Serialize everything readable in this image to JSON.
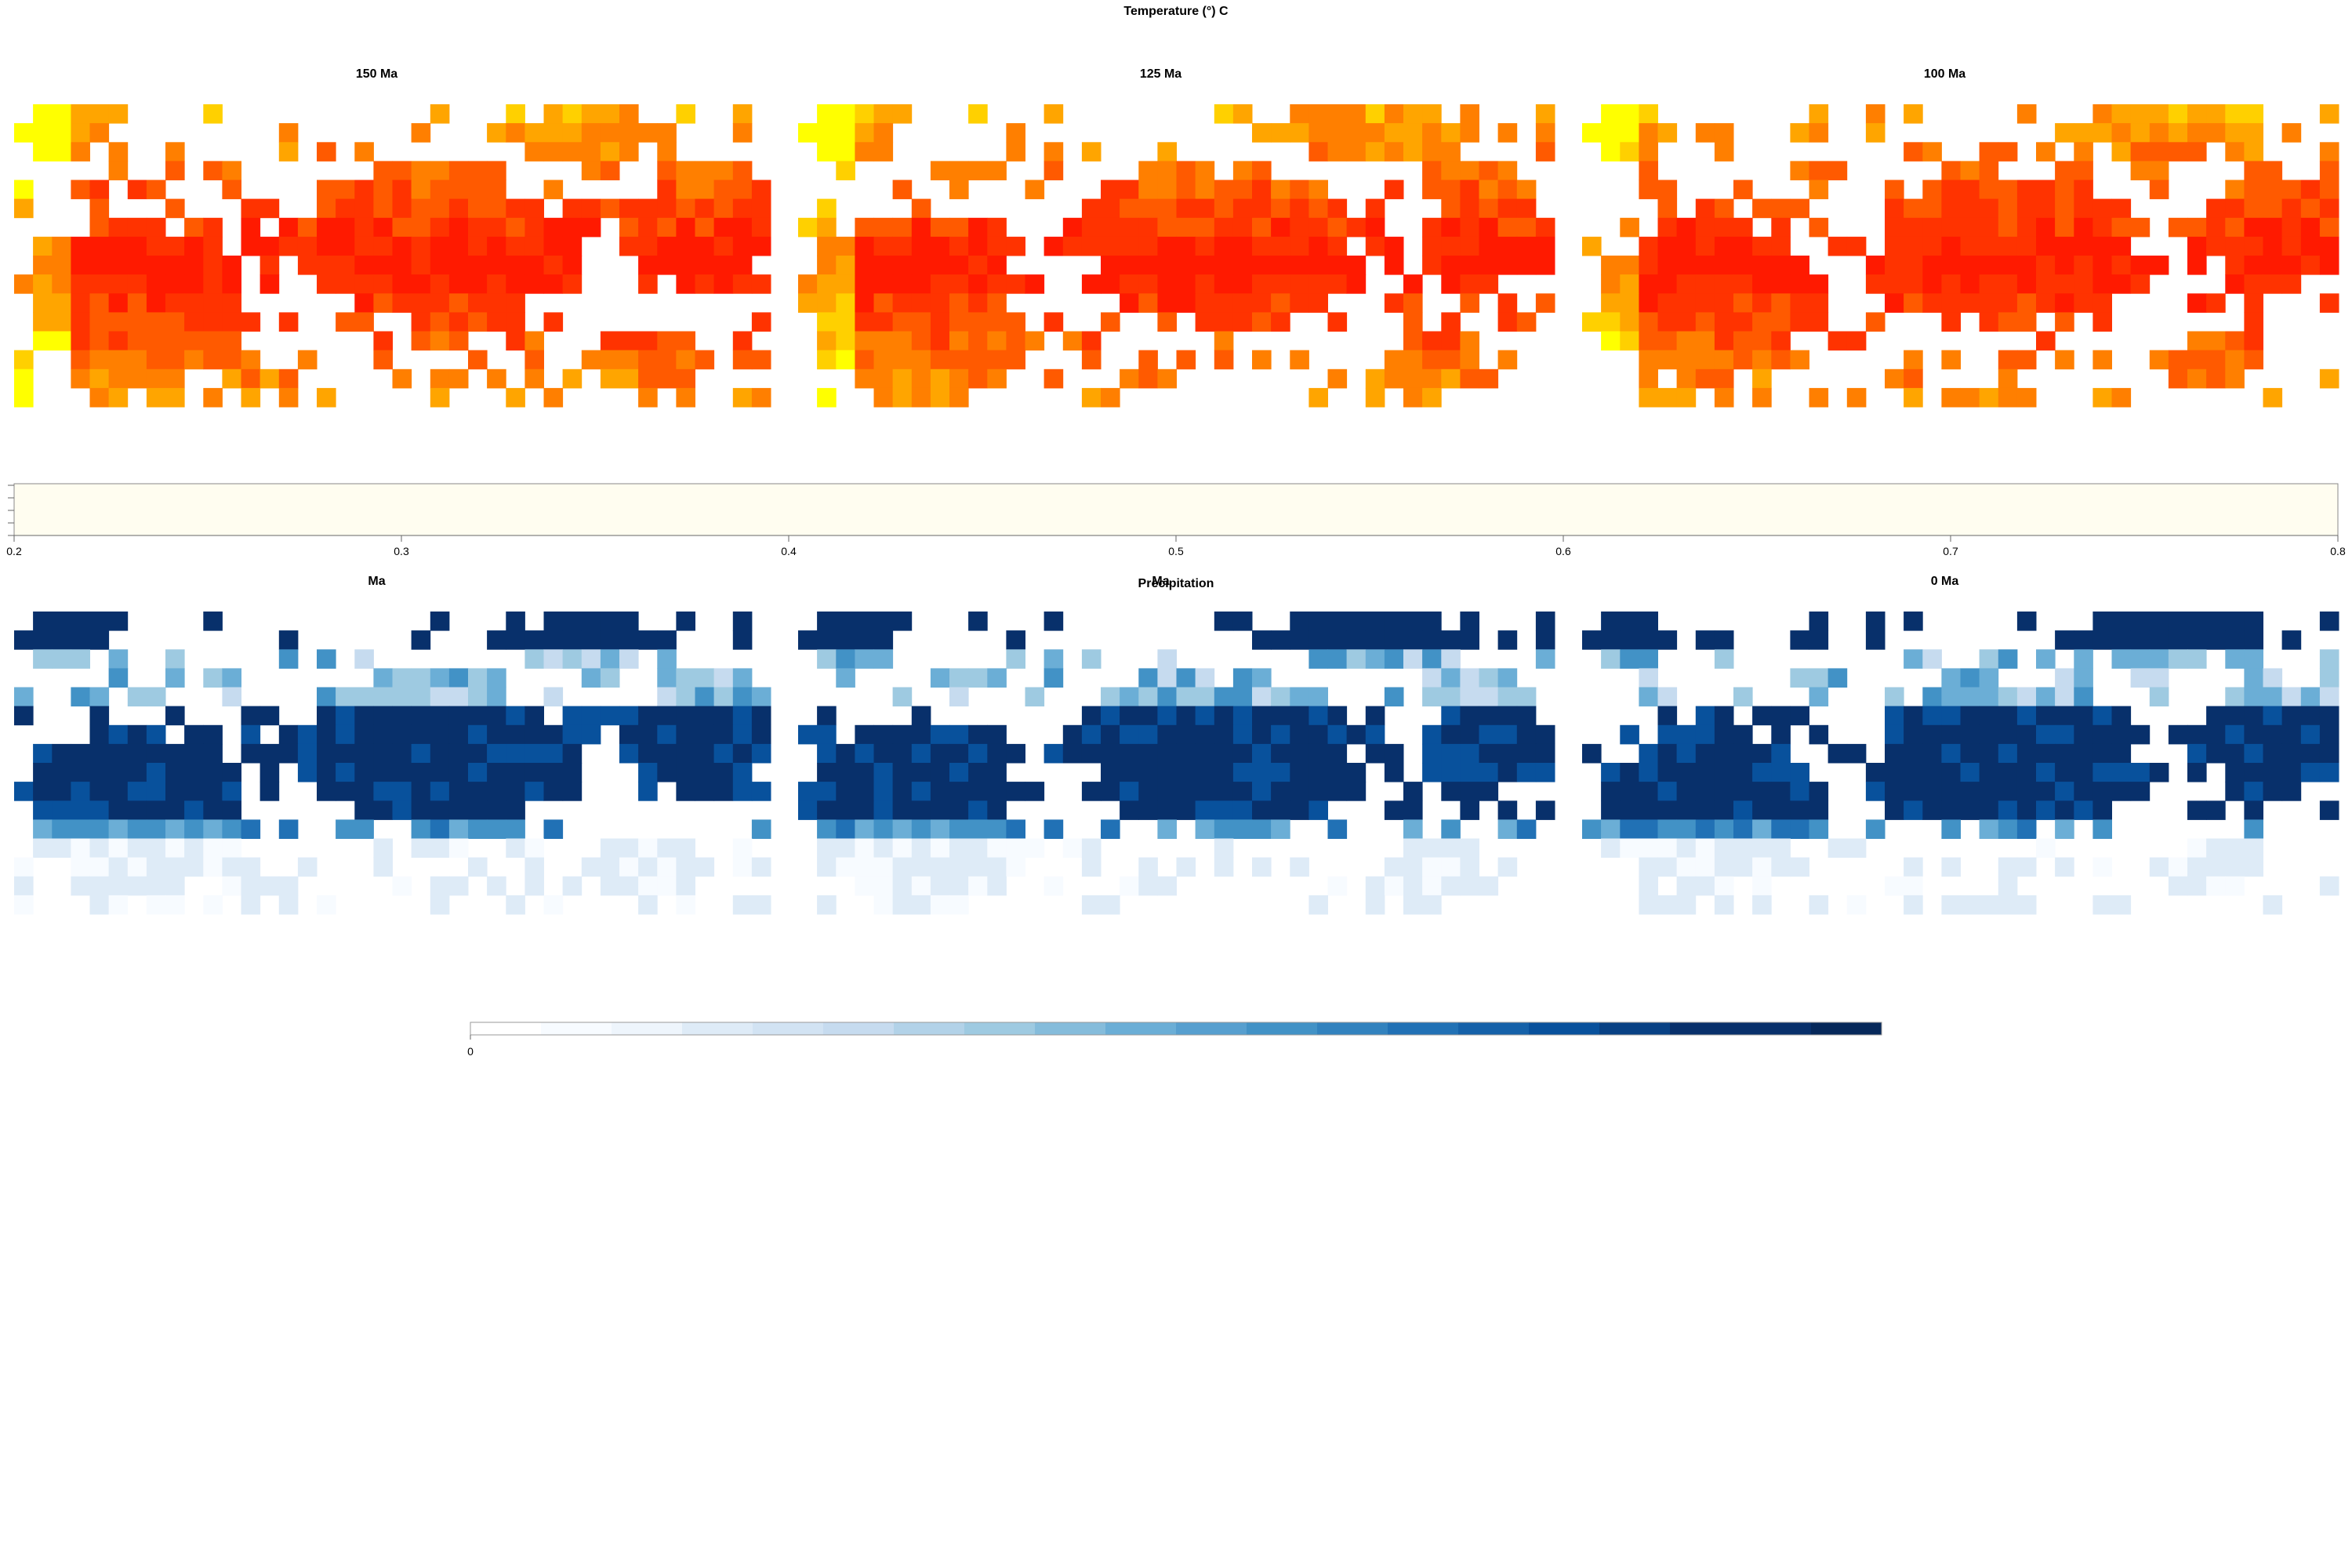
{
  "chart_data": [
    {
      "type": "heatmap",
      "title": "Temperature (°) C",
      "panels": [
        {
          "label": "150 Ma",
          "region_seed": 11
        },
        {
          "label": "125 Ma",
          "region_seed": 23
        },
        {
          "label": "100 Ma",
          "region_seed": 37
        }
      ],
      "colors": [
        "#ffff00",
        "#ffd000",
        "#ffa500",
        "#ff7f00",
        "#ff5a00",
        "#ff3300",
        "#ff1a00"
      ],
      "colorbar": {
        "ticks": [
          "0.2",
          "0.3",
          "0.4",
          "0.5",
          "0.6",
          "0.7",
          "0.8"
        ],
        "fill": "#fffdf0"
      }
    },
    {
      "type": "heatmap",
      "title": "Precipitation",
      "panels": [
        {
          "label": "Ma",
          "region_seed": 11
        },
        {
          "label": "Ma",
          "region_seed": 23
        },
        {
          "label": "0 Ma",
          "region_seed": 37
        }
      ],
      "colors": [
        "#f7fbff",
        "#deebf7",
        "#c6dbef",
        "#9ecae1",
        "#6baed6",
        "#4292c6",
        "#2171b5",
        "#08519c",
        "#08306b"
      ],
      "colorbar": {
        "ticks": [
          "0"
        ],
        "colors": [
          "#ffffff",
          "#f7fbff",
          "#eef5fc",
          "#deebf7",
          "#d2e3f3",
          "#c6dbef",
          "#b2d2e8",
          "#9ecae1",
          "#85bcdb",
          "#6baed6",
          "#579fcf",
          "#4292c6",
          "#3282be",
          "#2171b5",
          "#1561a9",
          "#08519c",
          "#084184",
          "#08306b",
          "#08306b",
          "#06285a"
        ]
      }
    }
  ]
}
